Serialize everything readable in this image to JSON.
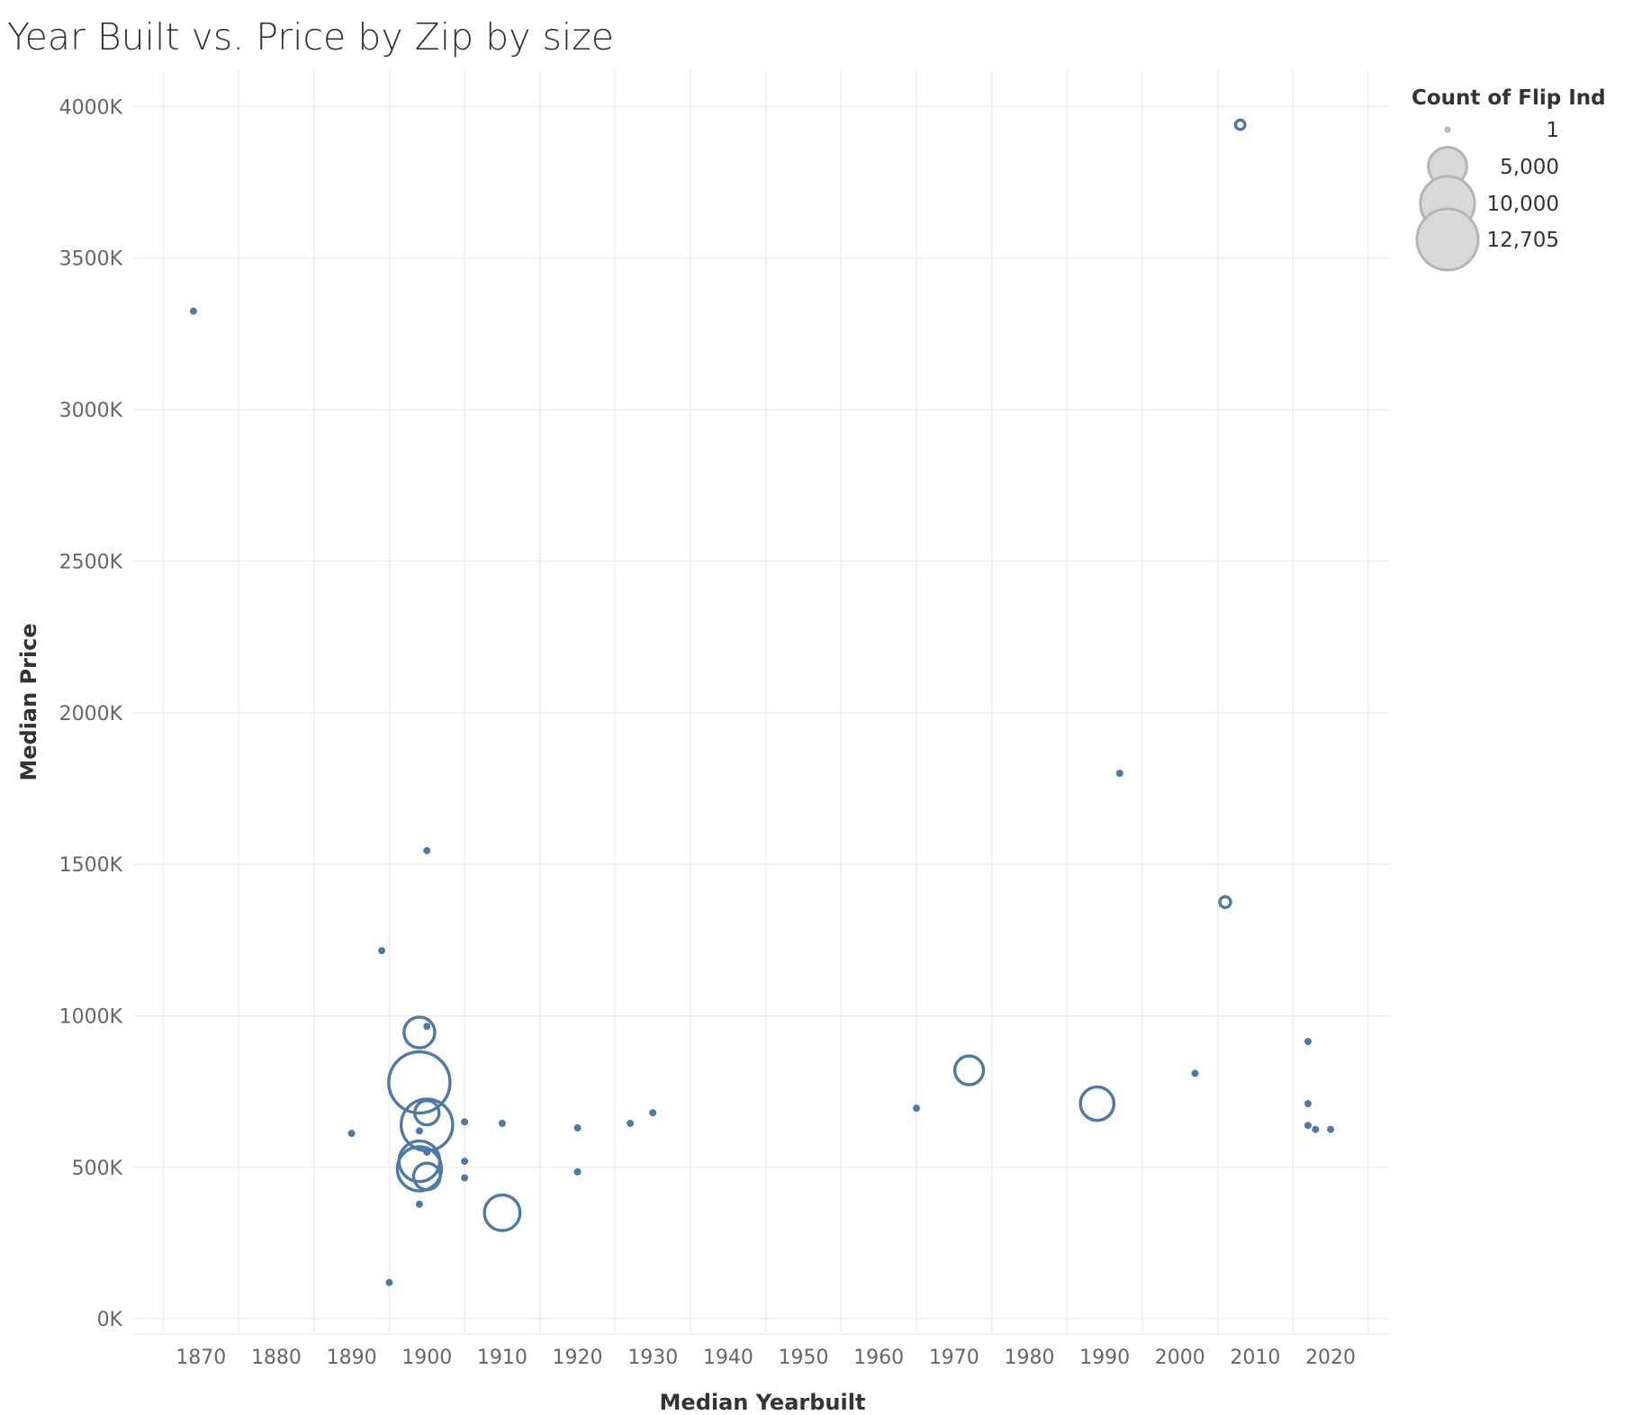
{
  "chart_data": {
    "type": "scatter",
    "title": "Year Built vs. Price by Zip  by size",
    "xlabel": "Median Yearbuilt",
    "ylabel": "Median Price",
    "xlim": [
      1861,
      2028
    ],
    "ylim": [
      -50,
      4120
    ],
    "x_ticks": [
      1870,
      1880,
      1890,
      1900,
      1910,
      1920,
      1930,
      1940,
      1950,
      1960,
      1970,
      1980,
      1990,
      2000,
      2010,
      2020
    ],
    "y_ticks": [
      0,
      500,
      1000,
      1500,
      2000,
      2500,
      3000,
      3500,
      4000
    ],
    "y_tick_labels": [
      "0K",
      "500K",
      "1000K",
      "1500K",
      "2000K",
      "2500K",
      "3000K",
      "3500K",
      "4000K"
    ],
    "grid": true,
    "color": "#4e79a7",
    "size_legend": {
      "title": "Count of Flip Ind",
      "position": "top-right",
      "entries": [
        {
          "label": "1",
          "value": 1
        },
        {
          "label": "5,000",
          "value": 5000
        },
        {
          "label": "10,000",
          "value": 10000
        },
        {
          "label": "12,705",
          "value": 12705
        }
      ]
    },
    "points": [
      {
        "x": 1869,
        "y": 3325,
        "size": 1
      },
      {
        "x": 2008,
        "y": 3940,
        "size": 300
      },
      {
        "x": 1992,
        "y": 1800,
        "size": 1
      },
      {
        "x": 1900,
        "y": 1545,
        "size": 1
      },
      {
        "x": 2006,
        "y": 1375,
        "size": 400
      },
      {
        "x": 1894,
        "y": 1215,
        "size": 1
      },
      {
        "x": 1899,
        "y": 945,
        "size": 3200
      },
      {
        "x": 1900,
        "y": 965,
        "size": 1
      },
      {
        "x": 2017,
        "y": 915,
        "size": 1
      },
      {
        "x": 1972,
        "y": 820,
        "size": 2800
      },
      {
        "x": 2002,
        "y": 810,
        "size": 1
      },
      {
        "x": 1899,
        "y": 780,
        "size": 12705
      },
      {
        "x": 1989,
        "y": 710,
        "size": 3800
      },
      {
        "x": 1965,
        "y": 695,
        "size": 1
      },
      {
        "x": 2017,
        "y": 710,
        "size": 1
      },
      {
        "x": 1930,
        "y": 680,
        "size": 1
      },
      {
        "x": 1900,
        "y": 680,
        "size": 2000
      },
      {
        "x": 1900,
        "y": 640,
        "size": 9000
      },
      {
        "x": 1905,
        "y": 650,
        "size": 1
      },
      {
        "x": 1910,
        "y": 645,
        "size": 1
      },
      {
        "x": 1927,
        "y": 645,
        "size": 1
      },
      {
        "x": 1920,
        "y": 630,
        "size": 1
      },
      {
        "x": 1899,
        "y": 620,
        "size": 1
      },
      {
        "x": 1890,
        "y": 612,
        "size": 1
      },
      {
        "x": 2017,
        "y": 638,
        "size": 1
      },
      {
        "x": 2018,
        "y": 625,
        "size": 1
      },
      {
        "x": 2020,
        "y": 625,
        "size": 1
      },
      {
        "x": 1900,
        "y": 550,
        "size": 1
      },
      {
        "x": 1899,
        "y": 520,
        "size": 5600
      },
      {
        "x": 1905,
        "y": 520,
        "size": 1
      },
      {
        "x": 1899,
        "y": 495,
        "size": 6600
      },
      {
        "x": 1920,
        "y": 485,
        "size": 1
      },
      {
        "x": 1900,
        "y": 470,
        "size": 2400
      },
      {
        "x": 1905,
        "y": 465,
        "size": 1
      },
      {
        "x": 1899,
        "y": 378,
        "size": 1
      },
      {
        "x": 1910,
        "y": 350,
        "size": 4300
      },
      {
        "x": 1895,
        "y": 120,
        "size": 1
      }
    ]
  }
}
